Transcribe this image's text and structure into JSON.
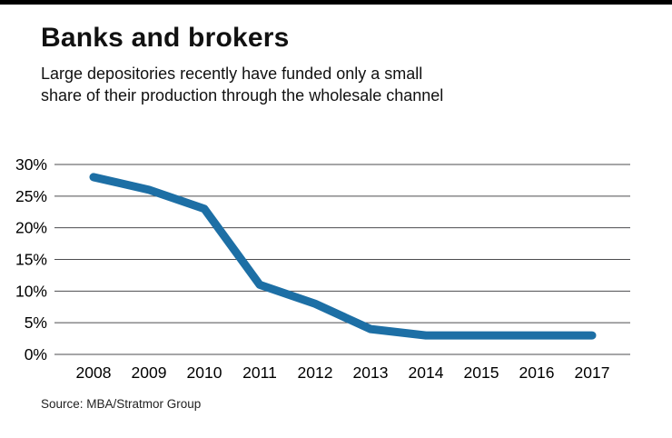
{
  "header": {
    "title": "Banks and brokers",
    "subtitle_lines": [
      "Large depositories recently have funded only a small",
      "share of their production through the wholesale channel"
    ]
  },
  "footer": {
    "source": "Source: MBA/Stratmor Group"
  },
  "chart_data": {
    "type": "line",
    "title": "Banks and brokers",
    "subtitle": "Large depositories recently have funded only a small share of their production through the wholesale channel",
    "categories": [
      "2008",
      "2009",
      "2010",
      "2011",
      "2012",
      "2013",
      "2014",
      "2015",
      "2016",
      "2017"
    ],
    "values": [
      28,
      26,
      23,
      11,
      8,
      4,
      3,
      3,
      3,
      3
    ],
    "ylim": [
      0,
      30
    ],
    "yticks": [
      0,
      5,
      10,
      15,
      20,
      25,
      30
    ],
    "ytick_suffix": "%",
    "grid": "horizontal",
    "legend": "none",
    "line_color": "#1d6fa5",
    "source": "Source: MBA/Stratmor Group"
  }
}
